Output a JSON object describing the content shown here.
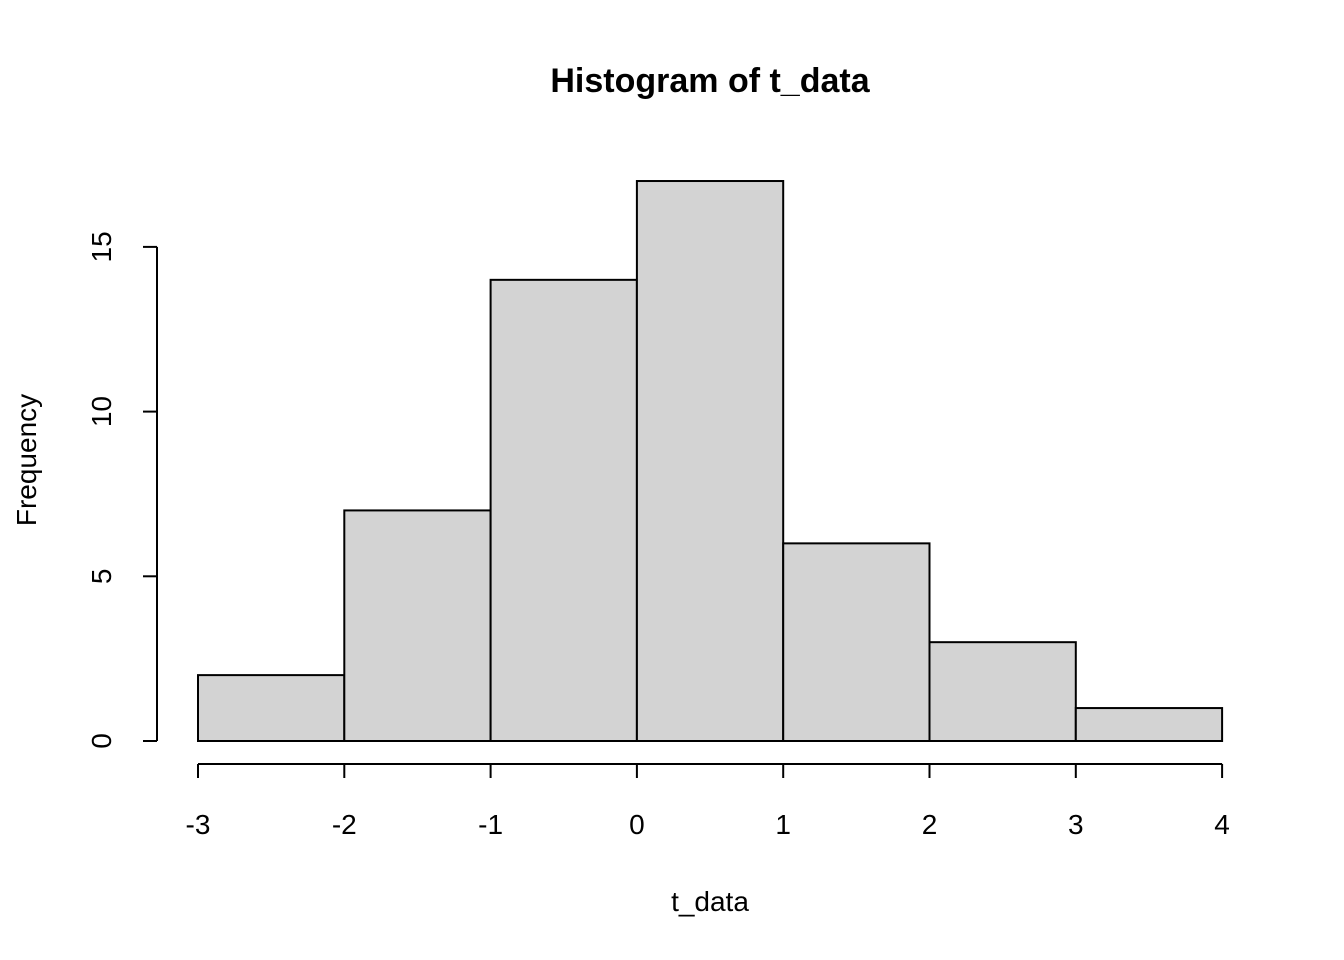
{
  "chart_data": {
    "type": "bar",
    "title": "Histogram of t_data",
    "xlabel": "t_data",
    "ylabel": "Frequency",
    "bins": [
      {
        "from": -3,
        "to": -2,
        "count": 2
      },
      {
        "from": -2,
        "to": -1,
        "count": 7
      },
      {
        "from": -1,
        "to": 0,
        "count": 14
      },
      {
        "from": 0,
        "to": 1,
        "count": 17
      },
      {
        "from": 1,
        "to": 2,
        "count": 6
      },
      {
        "from": 2,
        "to": 3,
        "count": 3
      },
      {
        "from": 3,
        "to": 4,
        "count": 1
      }
    ],
    "xlim": [
      -3,
      4
    ],
    "ylim": [
      0,
      17
    ],
    "x_ticks": [
      -3,
      -2,
      -1,
      0,
      1,
      2,
      3,
      4
    ],
    "y_ticks": [
      0,
      5,
      10,
      15
    ],
    "bar_color": "#d3d3d3",
    "grid": false
  }
}
